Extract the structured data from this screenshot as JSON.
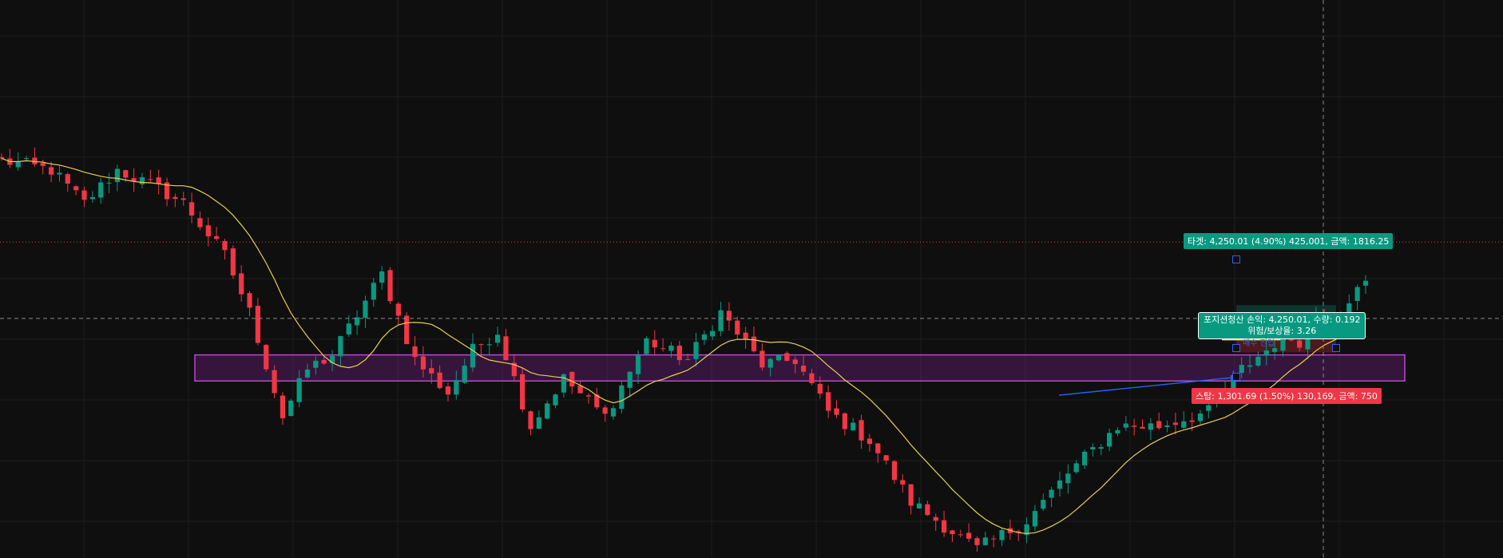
{
  "chart_data": {
    "type": "candlestick",
    "ylim": [
      0,
      100
    ],
    "grid": true,
    "ma_color": "#e9cf4a",
    "up_color": "#089981",
    "down_color": "#f23645",
    "zone_color": "#9c27b0",
    "anchors": [
      [
        0,
        84
      ],
      [
        6,
        82
      ],
      [
        10,
        75
      ],
      [
        14,
        82
      ],
      [
        19,
        78
      ],
      [
        22,
        75
      ],
      [
        27,
        64
      ],
      [
        30,
        52
      ],
      [
        34,
        30
      ],
      [
        37,
        40
      ],
      [
        40,
        43
      ],
      [
        46,
        60
      ],
      [
        50,
        42
      ],
      [
        54,
        35
      ],
      [
        57,
        44
      ],
      [
        60,
        48
      ],
      [
        64,
        28
      ],
      [
        68,
        38
      ],
      [
        73,
        30
      ],
      [
        78,
        46
      ],
      [
        83,
        42
      ],
      [
        87,
        52
      ],
      [
        92,
        41
      ],
      [
        96,
        42
      ],
      [
        100,
        31
      ],
      [
        105,
        25
      ],
      [
        110,
        12
      ],
      [
        118,
        2
      ],
      [
        124,
        8
      ],
      [
        129,
        18
      ],
      [
        135,
        28
      ],
      [
        140,
        28
      ],
      [
        146,
        31
      ],
      [
        150,
        40
      ],
      [
        153,
        44
      ],
      [
        155,
        47
      ],
      [
        157,
        46
      ],
      [
        159,
        52
      ],
      [
        161,
        50
      ],
      [
        163,
        55
      ],
      [
        165,
        58
      ]
    ],
    "plot": {
      "x0": 2,
      "x1": 1710,
      "y0": 106,
      "y1": 700,
      "n": 166
    },
    "sr_zone": [
      37.5,
      43.0
    ],
    "price_line": 66.8,
    "cursor_line": 50.7,
    "position": {
      "entry": 47.0,
      "target": 53.5,
      "stop": 43.5
    },
    "labels": {
      "target": "타겟: 4,250.01 (4.90%) 425,001, 금액: 1816.25",
      "stop": "스탑: 1,301.69 (1.50%) 130,169, 금액: 750",
      "exit_line1": "포지션청산 손익: 4,250.01, 수량: 0.192",
      "exit_line2": "위험/보상율: 3.26",
      "entry": "매수 진입"
    }
  }
}
